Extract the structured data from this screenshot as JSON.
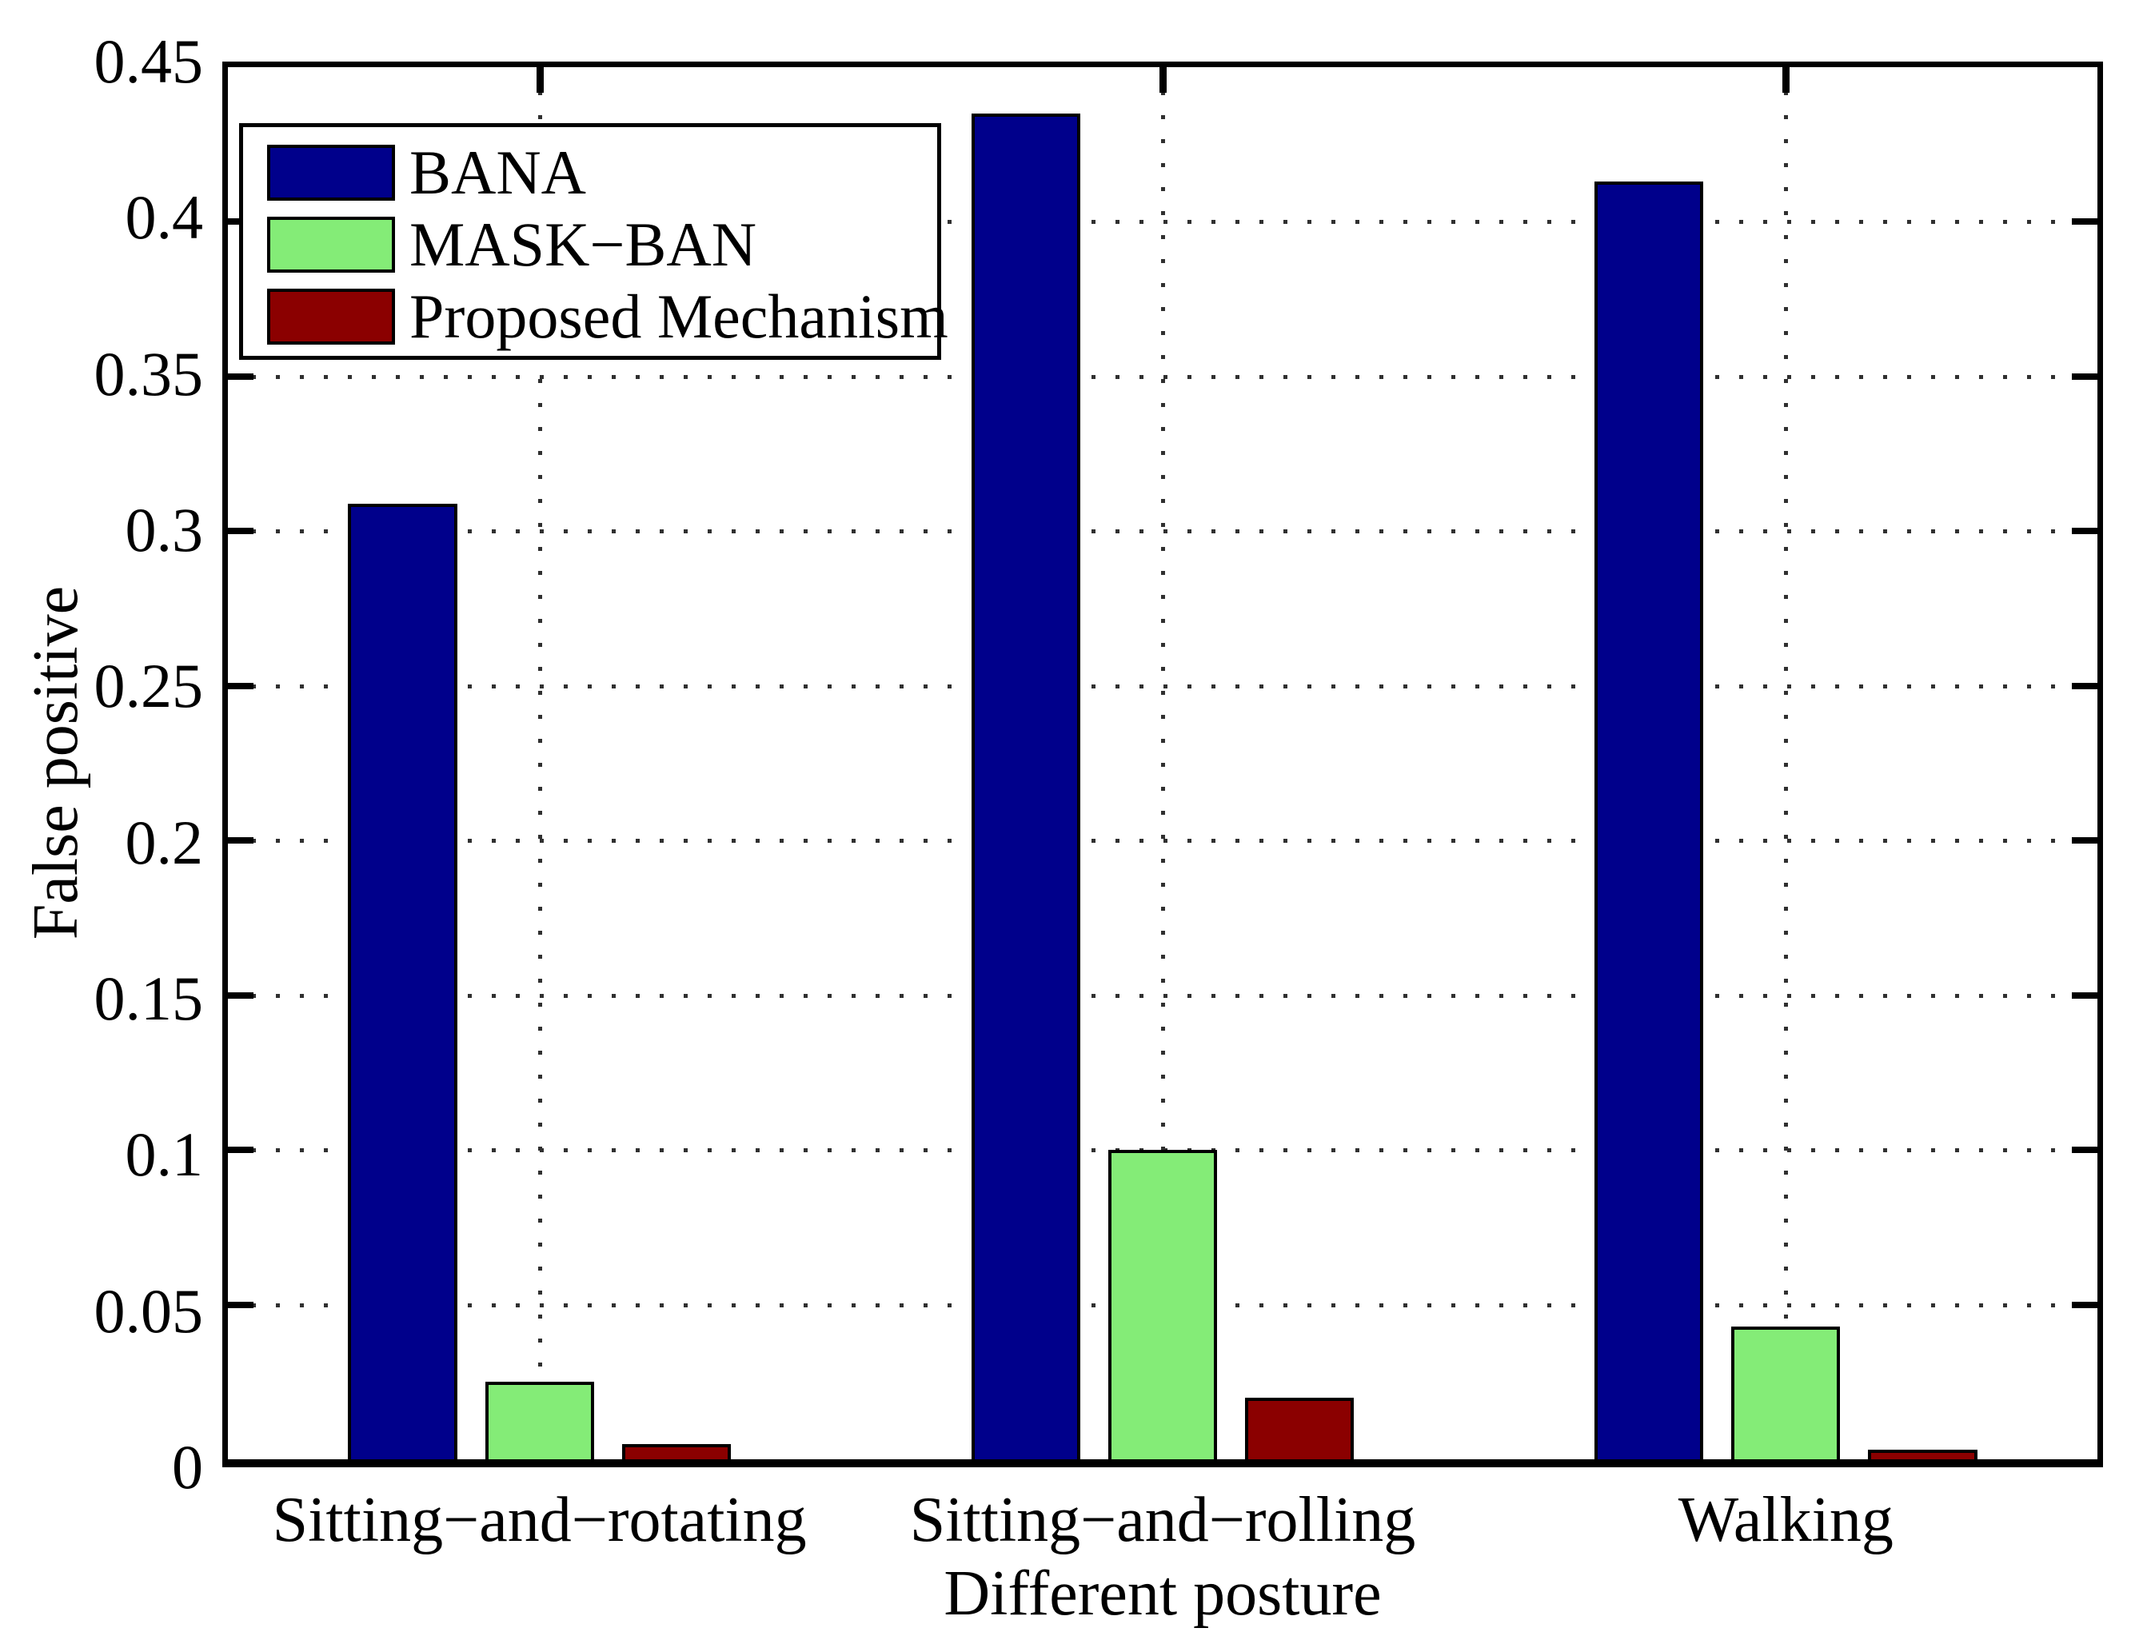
{
  "figure": {
    "ylabel": "False positive",
    "xlabel": "Different posture"
  },
  "chart_data": {
    "type": "bar",
    "title": "",
    "categories": [
      "Sitting−and−rotating",
      "Sitting−and−rolling",
      "Walking"
    ],
    "series": [
      {
        "name": "BANA",
        "color": "#00008B",
        "values": [
          0.309,
          0.435,
          0.413
        ]
      },
      {
        "name": "MASK−BAN",
        "color": "#84EC77",
        "values": [
          0.025,
          0.1,
          0.043
        ]
      },
      {
        "name": "Proposed Mechanism",
        "color": "#8B0000",
        "values": [
          0.005,
          0.02,
          0.003
        ]
      }
    ],
    "xlabel": "Different posture",
    "ylabel": "False positive",
    "ylim": [
      0,
      0.45
    ],
    "yticks": [
      "0",
      "0.05",
      "0.1",
      "0.15",
      "0.2",
      "0.25",
      "0.3",
      "0.35",
      "0.4",
      "0.45"
    ],
    "grid": "dotted-black",
    "bar_edge_color": "#000000",
    "legend": {
      "position": "top-left",
      "entries": [
        "BANA",
        "MASK−BAN",
        "Proposed Mechanism"
      ]
    }
  }
}
